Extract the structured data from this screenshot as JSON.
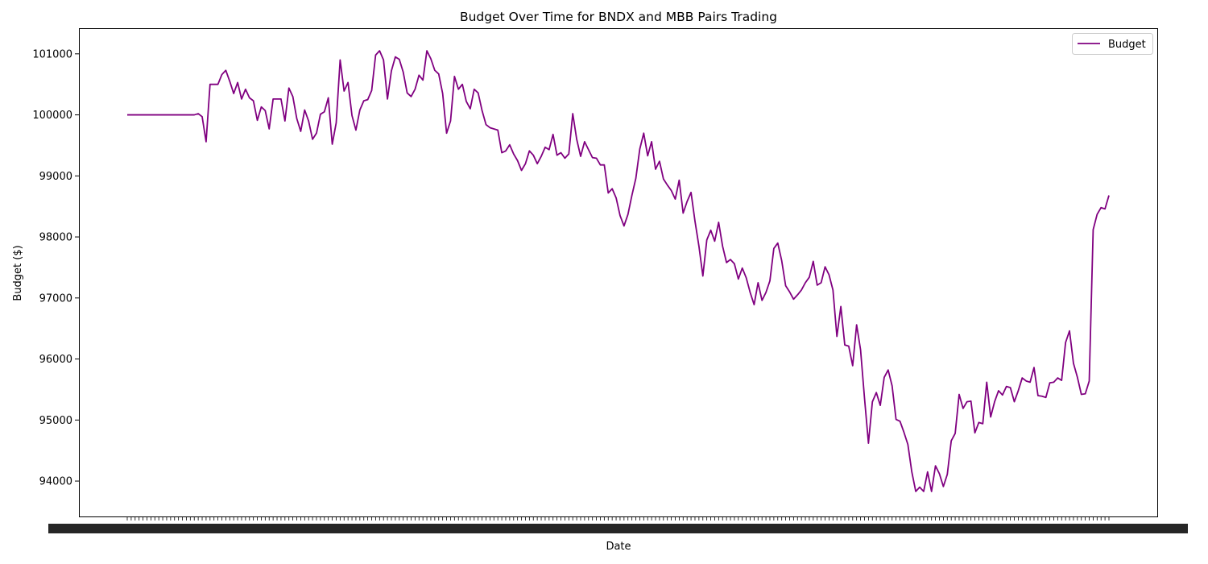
{
  "chart_data": {
    "type": "line",
    "title": "Budget Over Time for BNDX and MBB Pairs Trading",
    "xlabel": "Date",
    "ylabel": "Budget ($)",
    "x_tick_labels": "dense overlapping date labels (unreadable)",
    "y_ticks": [
      94000,
      95000,
      96000,
      97000,
      98000,
      99000,
      100000,
      101000
    ],
    "ylim": [
      93420,
      101420
    ],
    "grid": false,
    "legend": {
      "position": "top-right",
      "entries": [
        "Budget"
      ]
    },
    "series": [
      {
        "name": "Budget",
        "color": "#800080",
        "values": [
          100000,
          100000,
          100000,
          100000,
          100000,
          100000,
          100000,
          100000,
          100000,
          100000,
          100000,
          100000,
          100000,
          100000,
          100000,
          100000,
          100000,
          100000,
          100020,
          99970,
          99560,
          100500,
          100500,
          100500,
          100660,
          100730,
          100550,
          100350,
          100530,
          100260,
          100420,
          100280,
          100230,
          99910,
          100130,
          100070,
          99770,
          100260,
          100260,
          100260,
          99900,
          100440,
          100300,
          99940,
          99730,
          100080,
          99900,
          99600,
          99700,
          100010,
          100050,
          100280,
          99520,
          99870,
          100900,
          100390,
          100530,
          99990,
          99750,
          100080,
          100230,
          100250,
          100400,
          100980,
          101050,
          100900,
          100260,
          100720,
          100950,
          100910,
          100700,
          100360,
          100300,
          100420,
          100650,
          100570,
          101050,
          100920,
          100730,
          100670,
          100350,
          99700,
          99900,
          100630,
          100420,
          100500,
          100220,
          100100,
          100420,
          100360,
          100070,
          99840,
          99790,
          99770,
          99750,
          99380,
          99410,
          99510,
          99360,
          99250,
          99090,
          99200,
          99410,
          99340,
          99200,
          99320,
          99470,
          99430,
          99680,
          99340,
          99380,
          99290,
          99360,
          100020,
          99600,
          99320,
          99560,
          99430,
          99300,
          99290,
          99180,
          99180,
          98720,
          98790,
          98640,
          98350,
          98180,
          98370,
          98680,
          98960,
          99440,
          99700,
          99330,
          99560,
          99110,
          99240,
          98950,
          98850,
          98760,
          98620,
          98930,
          98390,
          98580,
          98730,
          98260,
          97850,
          97360,
          97950,
          98110,
          97930,
          98240,
          97850,
          97580,
          97630,
          97560,
          97310,
          97490,
          97330,
          97090,
          96890,
          97250,
          96960,
          97090,
          97280,
          97810,
          97900,
          97610,
          97200,
          97100,
          96980,
          97050,
          97130,
          97250,
          97340,
          97600,
          97210,
          97250,
          97510,
          97380,
          97130,
          96370,
          96860,
          96230,
          96210,
          95890,
          96560,
          96150,
          95360,
          94620,
          95300,
          95450,
          95240,
          95700,
          95820,
          95560,
          95010,
          94980,
          94800,
          94600,
          94150,
          93830,
          93900,
          93830,
          94150,
          93830,
          94250,
          94120,
          93910,
          94110,
          94660,
          94780,
          95420,
          95190,
          95300,
          95310,
          94790,
          94960,
          94940,
          95620,
          95050,
          95300,
          95480,
          95410,
          95550,
          95530,
          95300,
          95480,
          95690,
          95640,
          95620,
          95860,
          95400,
          95390,
          95370,
          95610,
          95620,
          95690,
          95650,
          96270,
          96460,
          95930,
          95700,
          95420,
          95430,
          95640,
          98120,
          98370,
          98480,
          98460,
          98680
        ]
      }
    ]
  }
}
